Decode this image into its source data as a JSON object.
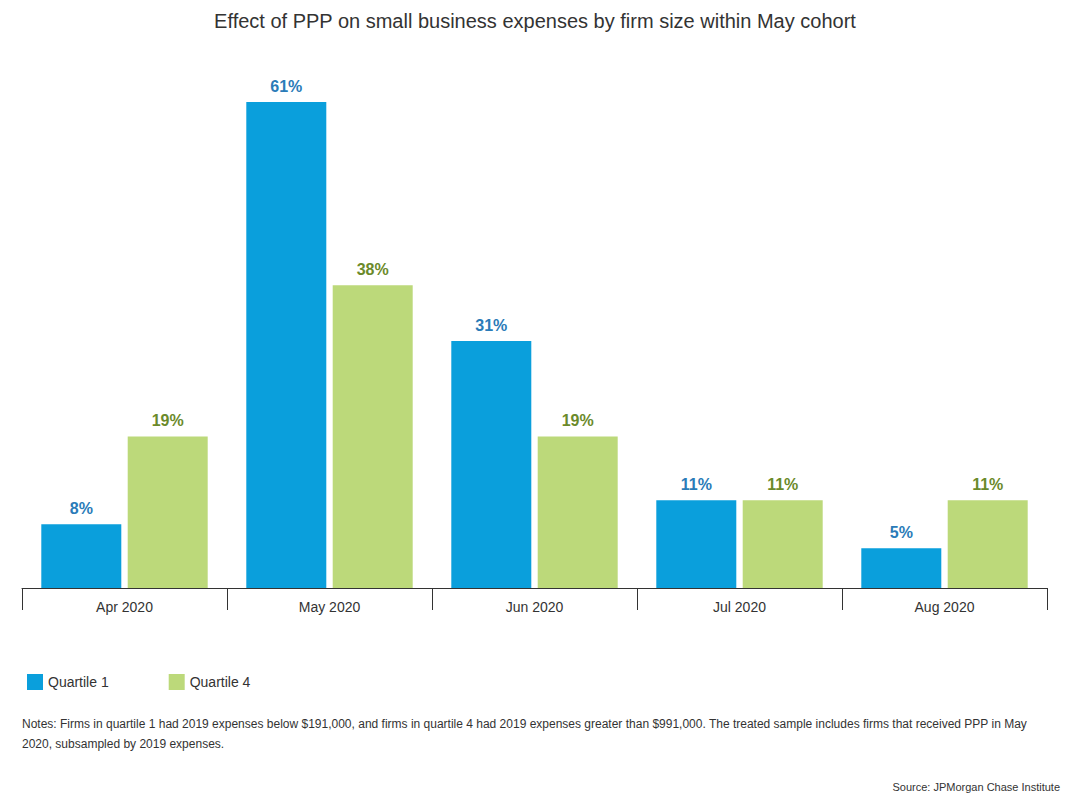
{
  "chart_data": {
    "type": "bar",
    "title": "Effect of PPP on small business expenses by firm size within May cohort",
    "categories": [
      "Apr 2020",
      "May 2020",
      "Jun 2020",
      "Jul 2020",
      "Aug 2020"
    ],
    "series": [
      {
        "name": "Quartile 1",
        "color": "#0a9fdc",
        "values": [
          8,
          61,
          31,
          11,
          5
        ],
        "value_labels": [
          "8%",
          "61%",
          "31%",
          "11%",
          "5%"
        ]
      },
      {
        "name": "Quartile 4",
        "color": "#bcd97a",
        "values": [
          19,
          38,
          19,
          11,
          11
        ],
        "value_labels": [
          "19%",
          "38%",
          "19%",
          "11%",
          "11%"
        ]
      }
    ],
    "ylim": [
      0,
      61
    ],
    "grid": false,
    "tick_labels": "x",
    "data_labels": true,
    "legend": "bottom-left",
    "notes": "Notes: Firms in quartile 1 had 2019 expenses below $191,000, and firms in quartile 4 had 2019 expenses greater than $991,000. The treated sample includes firms that received PPP in May 2020, subsampled by 2019 expenses.",
    "source": "Source: JPMorgan Chase Institute"
  }
}
